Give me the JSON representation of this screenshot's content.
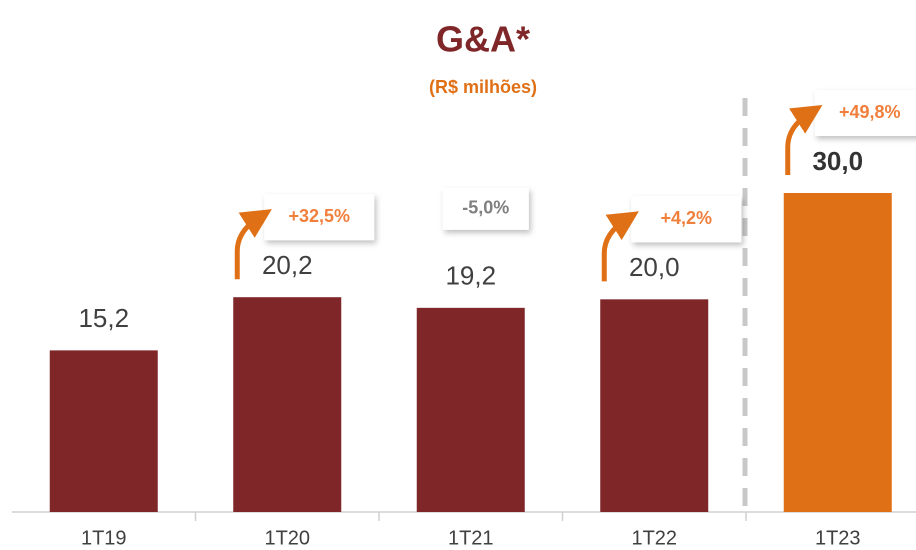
{
  "chart_data": {
    "type": "bar",
    "title": "G&A*",
    "subtitle": "(R$ milhões)",
    "categories": [
      "1T19",
      "1T20",
      "1T21",
      "1T22",
      "1T23"
    ],
    "values": [
      15.2,
      20.2,
      19.2,
      20.0,
      30.0
    ],
    "value_labels": [
      "15,2",
      "20,2",
      "19,2",
      "20,0",
      "30,0"
    ],
    "colors": [
      "#7f2628",
      "#7f2628",
      "#7f2628",
      "#7f2628",
      "#e07016"
    ],
    "annotations": [
      null,
      "+32,5%",
      "-5,0%",
      "+4,2%",
      "+49,8%"
    ],
    "annotation_colors": [
      null,
      "#f07f3c",
      "#7f7f7f",
      "#f07f3c",
      "#f07f3c"
    ],
    "annotation_arrows": [
      false,
      true,
      false,
      true,
      true
    ],
    "ylim": [
      0,
      30
    ]
  }
}
